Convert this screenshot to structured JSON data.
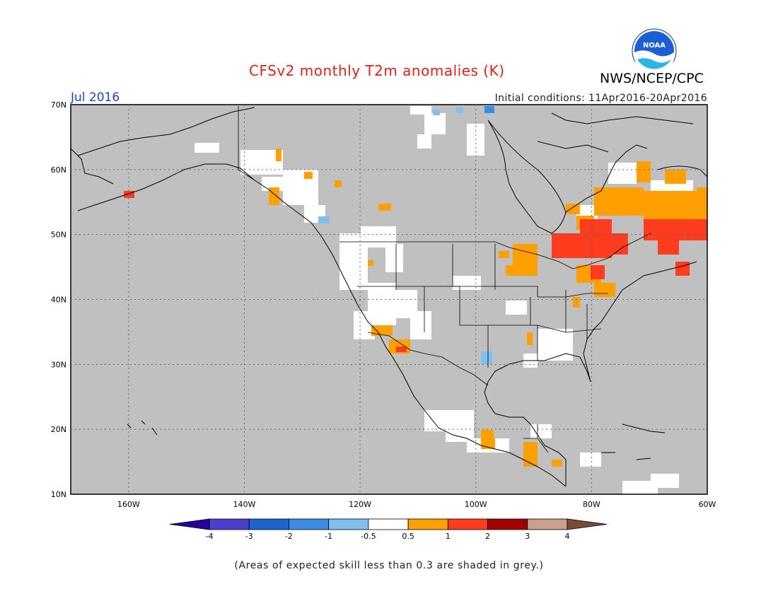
{
  "header": {
    "title": "CFSv2 monthly T2m anomalies (K)",
    "month": "Jul 2016",
    "initial_conditions": "Initial conditions: 11Apr2016-20Apr2016",
    "agency": "NWS/NCEP/CPC",
    "logo_text": "NOAA"
  },
  "map": {
    "lat_labels": [
      "70N",
      "60N",
      "50N",
      "40N",
      "30N",
      "20N",
      "10N"
    ],
    "lon_labels": [
      "160W",
      "140W",
      "120W",
      "100W",
      "80W",
      "60W"
    ]
  },
  "colorbar": {
    "labels": [
      "-4",
      "-3",
      "-2",
      "-1",
      "-0.5",
      "0.5",
      "1",
      "2",
      "3",
      "4"
    ],
    "colors": [
      "#24009c",
      "#4c3fd0",
      "#1e64d0",
      "#3c8ce6",
      "#82bef0",
      "#ffffff",
      "#ff9f00",
      "#ff3c1e",
      "#a00000",
      "#c8a08c",
      "#7a4a3c"
    ]
  },
  "footnote": "(Areas of expected skill less than 0.3 are shaded in grey.)"
}
